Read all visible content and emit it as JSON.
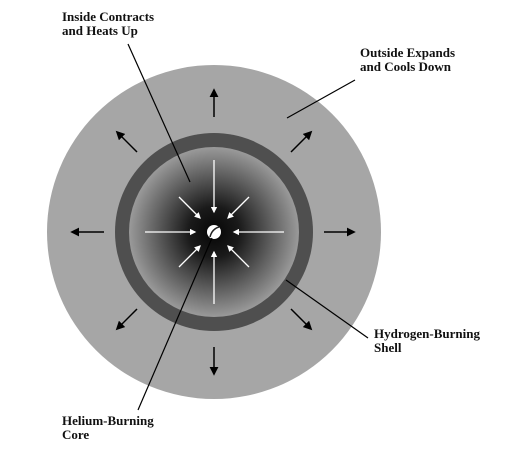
{
  "labels": {
    "inside_line1": "Inside Contracts",
    "inside_line2": "and Heats Up",
    "outside_line1": "Outside Expands",
    "outside_line2": "and Cools Down",
    "hydrogen_line1": "Hydrogen-Burning",
    "hydrogen_line2": "Shell",
    "helium_line1": "Helium-Burning",
    "helium_line2": "Core"
  },
  "colors": {
    "outer_envelope": "#a6a6a6",
    "hydrogen_shell": "#4f4f4f",
    "core_center": "#060606",
    "core_edge": "#9a9a9a",
    "outward_arrow": "#000000",
    "inward_arrow": "#ffffff",
    "leader_line": "#000000"
  }
}
